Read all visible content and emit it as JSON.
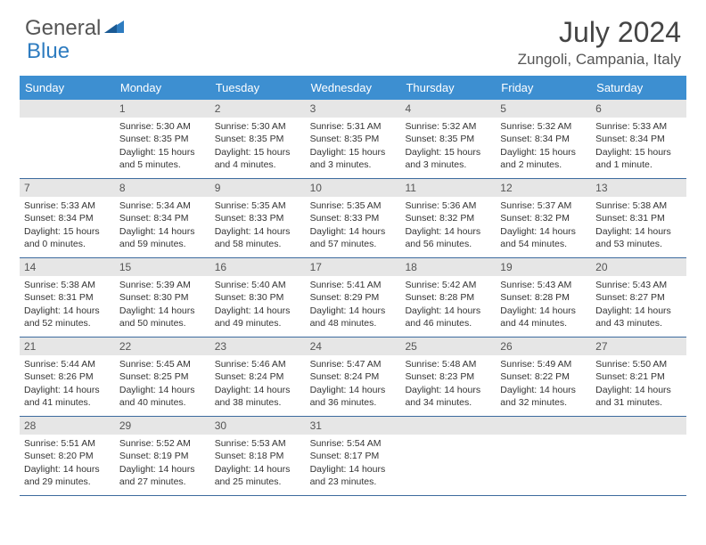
{
  "logo": {
    "text1": "General",
    "text2": "Blue"
  },
  "title": "July 2024",
  "location": "Zungoli, Campania, Italy",
  "colors": {
    "header_bg": "#3d8fd1",
    "daynum_bg": "#e6e6e6",
    "week_border": "#3d6b9e",
    "logo_accent": "#2e7cc0"
  },
  "weekdays": [
    "Sunday",
    "Monday",
    "Tuesday",
    "Wednesday",
    "Thursday",
    "Friday",
    "Saturday"
  ],
  "weeks": [
    [
      {
        "n": "",
        "lines": []
      },
      {
        "n": "1",
        "lines": [
          "Sunrise: 5:30 AM",
          "Sunset: 8:35 PM",
          "Daylight: 15 hours",
          "and 5 minutes."
        ]
      },
      {
        "n": "2",
        "lines": [
          "Sunrise: 5:30 AM",
          "Sunset: 8:35 PM",
          "Daylight: 15 hours",
          "and 4 minutes."
        ]
      },
      {
        "n": "3",
        "lines": [
          "Sunrise: 5:31 AM",
          "Sunset: 8:35 PM",
          "Daylight: 15 hours",
          "and 3 minutes."
        ]
      },
      {
        "n": "4",
        "lines": [
          "Sunrise: 5:32 AM",
          "Sunset: 8:35 PM",
          "Daylight: 15 hours",
          "and 3 minutes."
        ]
      },
      {
        "n": "5",
        "lines": [
          "Sunrise: 5:32 AM",
          "Sunset: 8:34 PM",
          "Daylight: 15 hours",
          "and 2 minutes."
        ]
      },
      {
        "n": "6",
        "lines": [
          "Sunrise: 5:33 AM",
          "Sunset: 8:34 PM",
          "Daylight: 15 hours",
          "and 1 minute."
        ]
      }
    ],
    [
      {
        "n": "7",
        "lines": [
          "Sunrise: 5:33 AM",
          "Sunset: 8:34 PM",
          "Daylight: 15 hours",
          "and 0 minutes."
        ]
      },
      {
        "n": "8",
        "lines": [
          "Sunrise: 5:34 AM",
          "Sunset: 8:34 PM",
          "Daylight: 14 hours",
          "and 59 minutes."
        ]
      },
      {
        "n": "9",
        "lines": [
          "Sunrise: 5:35 AM",
          "Sunset: 8:33 PM",
          "Daylight: 14 hours",
          "and 58 minutes."
        ]
      },
      {
        "n": "10",
        "lines": [
          "Sunrise: 5:35 AM",
          "Sunset: 8:33 PM",
          "Daylight: 14 hours",
          "and 57 minutes."
        ]
      },
      {
        "n": "11",
        "lines": [
          "Sunrise: 5:36 AM",
          "Sunset: 8:32 PM",
          "Daylight: 14 hours",
          "and 56 minutes."
        ]
      },
      {
        "n": "12",
        "lines": [
          "Sunrise: 5:37 AM",
          "Sunset: 8:32 PM",
          "Daylight: 14 hours",
          "and 54 minutes."
        ]
      },
      {
        "n": "13",
        "lines": [
          "Sunrise: 5:38 AM",
          "Sunset: 8:31 PM",
          "Daylight: 14 hours",
          "and 53 minutes."
        ]
      }
    ],
    [
      {
        "n": "14",
        "lines": [
          "Sunrise: 5:38 AM",
          "Sunset: 8:31 PM",
          "Daylight: 14 hours",
          "and 52 minutes."
        ]
      },
      {
        "n": "15",
        "lines": [
          "Sunrise: 5:39 AM",
          "Sunset: 8:30 PM",
          "Daylight: 14 hours",
          "and 50 minutes."
        ]
      },
      {
        "n": "16",
        "lines": [
          "Sunrise: 5:40 AM",
          "Sunset: 8:30 PM",
          "Daylight: 14 hours",
          "and 49 minutes."
        ]
      },
      {
        "n": "17",
        "lines": [
          "Sunrise: 5:41 AM",
          "Sunset: 8:29 PM",
          "Daylight: 14 hours",
          "and 48 minutes."
        ]
      },
      {
        "n": "18",
        "lines": [
          "Sunrise: 5:42 AM",
          "Sunset: 8:28 PM",
          "Daylight: 14 hours",
          "and 46 minutes."
        ]
      },
      {
        "n": "19",
        "lines": [
          "Sunrise: 5:43 AM",
          "Sunset: 8:28 PM",
          "Daylight: 14 hours",
          "and 44 minutes."
        ]
      },
      {
        "n": "20",
        "lines": [
          "Sunrise: 5:43 AM",
          "Sunset: 8:27 PM",
          "Daylight: 14 hours",
          "and 43 minutes."
        ]
      }
    ],
    [
      {
        "n": "21",
        "lines": [
          "Sunrise: 5:44 AM",
          "Sunset: 8:26 PM",
          "Daylight: 14 hours",
          "and 41 minutes."
        ]
      },
      {
        "n": "22",
        "lines": [
          "Sunrise: 5:45 AM",
          "Sunset: 8:25 PM",
          "Daylight: 14 hours",
          "and 40 minutes."
        ]
      },
      {
        "n": "23",
        "lines": [
          "Sunrise: 5:46 AM",
          "Sunset: 8:24 PM",
          "Daylight: 14 hours",
          "and 38 minutes."
        ]
      },
      {
        "n": "24",
        "lines": [
          "Sunrise: 5:47 AM",
          "Sunset: 8:24 PM",
          "Daylight: 14 hours",
          "and 36 minutes."
        ]
      },
      {
        "n": "25",
        "lines": [
          "Sunrise: 5:48 AM",
          "Sunset: 8:23 PM",
          "Daylight: 14 hours",
          "and 34 minutes."
        ]
      },
      {
        "n": "26",
        "lines": [
          "Sunrise: 5:49 AM",
          "Sunset: 8:22 PM",
          "Daylight: 14 hours",
          "and 32 minutes."
        ]
      },
      {
        "n": "27",
        "lines": [
          "Sunrise: 5:50 AM",
          "Sunset: 8:21 PM",
          "Daylight: 14 hours",
          "and 31 minutes."
        ]
      }
    ],
    [
      {
        "n": "28",
        "lines": [
          "Sunrise: 5:51 AM",
          "Sunset: 8:20 PM",
          "Daylight: 14 hours",
          "and 29 minutes."
        ]
      },
      {
        "n": "29",
        "lines": [
          "Sunrise: 5:52 AM",
          "Sunset: 8:19 PM",
          "Daylight: 14 hours",
          "and 27 minutes."
        ]
      },
      {
        "n": "30",
        "lines": [
          "Sunrise: 5:53 AM",
          "Sunset: 8:18 PM",
          "Daylight: 14 hours",
          "and 25 minutes."
        ]
      },
      {
        "n": "31",
        "lines": [
          "Sunrise: 5:54 AM",
          "Sunset: 8:17 PM",
          "Daylight: 14 hours",
          "and 23 minutes."
        ]
      },
      {
        "n": "",
        "lines": []
      },
      {
        "n": "",
        "lines": []
      },
      {
        "n": "",
        "lines": []
      }
    ]
  ]
}
